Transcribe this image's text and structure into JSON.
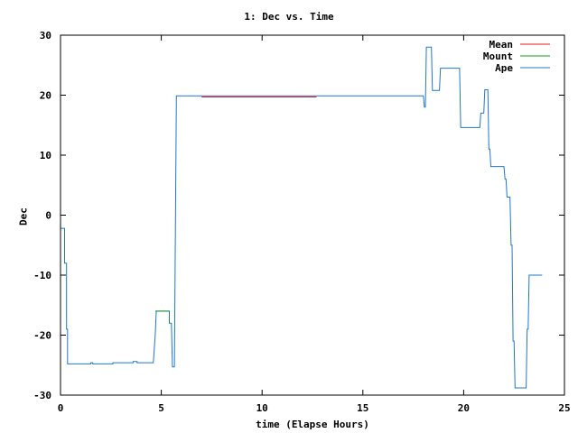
{
  "chart_data": {
    "type": "line",
    "title": "1: Dec vs. Time",
    "xlabel": "time (Elapse Hours)",
    "ylabel": "Dec",
    "xlim": [
      0,
      25
    ],
    "ylim": [
      -30,
      30
    ],
    "xticks": [
      0,
      5,
      10,
      15,
      20,
      25
    ],
    "yticks": [
      -30,
      -20,
      -10,
      0,
      10,
      20,
      30
    ],
    "grid": false,
    "legend_position": "top-right",
    "series": [
      {
        "name": "Mean",
        "color": "#e41a1c",
        "points": [
          [
            7.0,
            19.7
          ],
          [
            12.7,
            19.7
          ]
        ]
      },
      {
        "name": "Mount",
        "color": "#1a9a1a",
        "points": [
          [
            4.7,
            -16.0
          ],
          [
            5.4,
            -16.0
          ]
        ]
      },
      {
        "name": "Ape",
        "color": "#1f77d0",
        "points": [
          [
            0.0,
            -2.2
          ],
          [
            0.2,
            -2.2
          ],
          [
            0.2,
            -8.0
          ],
          [
            0.3,
            -8.0
          ],
          [
            0.3,
            -19.0
          ],
          [
            0.35,
            -19.0
          ],
          [
            0.35,
            -24.8
          ],
          [
            1.5,
            -24.8
          ],
          [
            1.5,
            -24.6
          ],
          [
            1.6,
            -24.6
          ],
          [
            1.6,
            -24.8
          ],
          [
            2.6,
            -24.8
          ],
          [
            2.6,
            -24.6
          ],
          [
            3.6,
            -24.6
          ],
          [
            3.6,
            -24.4
          ],
          [
            3.8,
            -24.4
          ],
          [
            3.8,
            -24.6
          ],
          [
            4.6,
            -24.6
          ],
          [
            4.7,
            -20.0
          ],
          [
            4.75,
            -16.0
          ],
          [
            5.4,
            -16.0
          ],
          [
            5.4,
            -18.0
          ],
          [
            5.5,
            -18.0
          ],
          [
            5.55,
            -25.3
          ],
          [
            5.65,
            -25.3
          ],
          [
            5.7,
            -2.7
          ],
          [
            5.75,
            19.9
          ],
          [
            18.0,
            19.9
          ],
          [
            18.05,
            18.0
          ],
          [
            18.1,
            18.0
          ],
          [
            18.15,
            28.0
          ],
          [
            18.4,
            28.0
          ],
          [
            18.45,
            20.8
          ],
          [
            18.8,
            20.8
          ],
          [
            18.85,
            24.5
          ],
          [
            19.8,
            24.5
          ],
          [
            19.85,
            14.6
          ],
          [
            20.8,
            14.6
          ],
          [
            20.85,
            17.0
          ],
          [
            21.0,
            17.0
          ],
          [
            21.05,
            20.9
          ],
          [
            21.2,
            20.9
          ],
          [
            21.25,
            11.0
          ],
          [
            21.3,
            11.0
          ],
          [
            21.35,
            8.1
          ],
          [
            22.0,
            8.1
          ],
          [
            22.05,
            6.0
          ],
          [
            22.1,
            6.0
          ],
          [
            22.15,
            3.0
          ],
          [
            22.3,
            3.0
          ],
          [
            22.35,
            -5.0
          ],
          [
            22.4,
            -5.0
          ],
          [
            22.45,
            -21.0
          ],
          [
            22.5,
            -21.0
          ],
          [
            22.55,
            -28.8
          ],
          [
            23.1,
            -28.8
          ],
          [
            23.15,
            -19.0
          ],
          [
            23.2,
            -19.0
          ],
          [
            23.25,
            -10.0
          ],
          [
            23.9,
            -10.0
          ]
        ]
      }
    ]
  }
}
